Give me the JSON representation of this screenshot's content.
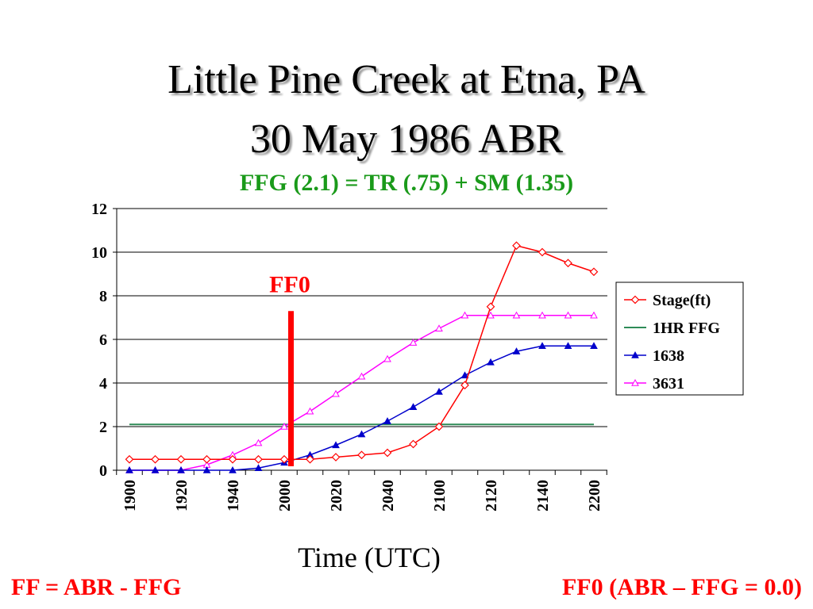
{
  "slide": {
    "title_line1": "Little Pine Creek at Etna, PA",
    "title_line2": "30 May 1986 ABR",
    "subtitle": "FFG (2.1) = TR (.75) + SM (1.35)",
    "footer_left": "FF = ABR - FFG",
    "footer_right": "FF0 (ABR – FFG = 0.0)"
  },
  "chart_data": {
    "type": "line",
    "xlabel": "Time (UTC)",
    "ylabel": "",
    "ylim": [
      0,
      12
    ],
    "yticks": [
      0,
      2,
      4,
      6,
      8,
      10,
      12
    ],
    "categories": [
      "1900",
      "1910",
      "1920",
      "1930",
      "1940",
      "1950",
      "2000",
      "2010",
      "2020",
      "2030",
      "2040",
      "2050",
      "2100",
      "2110",
      "2120",
      "2130",
      "2140",
      "2150",
      "2200"
    ],
    "xtick_labels": [
      "1900",
      "1920",
      "1940",
      "2000",
      "2020",
      "2040",
      "2100",
      "2120",
      "2140",
      "2200"
    ],
    "grid": "horizontal",
    "legend_position": "right",
    "series": [
      {
        "name": "Stage(ft)",
        "color": "#ff0000",
        "marker": "diamond-open",
        "values": [
          0.5,
          0.5,
          0.5,
          0.5,
          0.5,
          0.5,
          0.5,
          0.5,
          0.6,
          0.7,
          0.8,
          1.2,
          2.0,
          3.9,
          7.5,
          10.3,
          10.0,
          9.5,
          9.1
        ]
      },
      {
        "name": "1HR FFG",
        "color": "#2e8b57",
        "marker": "none",
        "values": [
          2.1,
          2.1,
          2.1,
          2.1,
          2.1,
          2.1,
          2.1,
          2.1,
          2.1,
          2.1,
          2.1,
          2.1,
          2.1,
          2.1,
          2.1,
          2.1,
          2.1,
          2.1,
          2.1
        ]
      },
      {
        "name": "1638",
        "color": "#0000cc",
        "marker": "triangle-filled",
        "values": [
          0,
          0,
          0,
          0,
          0,
          0.1,
          0.35,
          0.7,
          1.15,
          1.65,
          2.25,
          2.9,
          3.6,
          4.35,
          4.95,
          5.45,
          5.7,
          5.7,
          5.7
        ]
      },
      {
        "name": "3631",
        "color": "#ff00ff",
        "marker": "triangle-open",
        "values": [
          0,
          0,
          0,
          0.25,
          0.7,
          1.25,
          2.0,
          2.7,
          3.5,
          4.3,
          5.1,
          5.85,
          6.5,
          7.1,
          7.1,
          7.1,
          7.1,
          7.1,
          7.1
        ]
      }
    ],
    "annotation": {
      "label": "FF0",
      "color": "#ff0000",
      "x": "2003",
      "y_top": 7.3
    }
  }
}
